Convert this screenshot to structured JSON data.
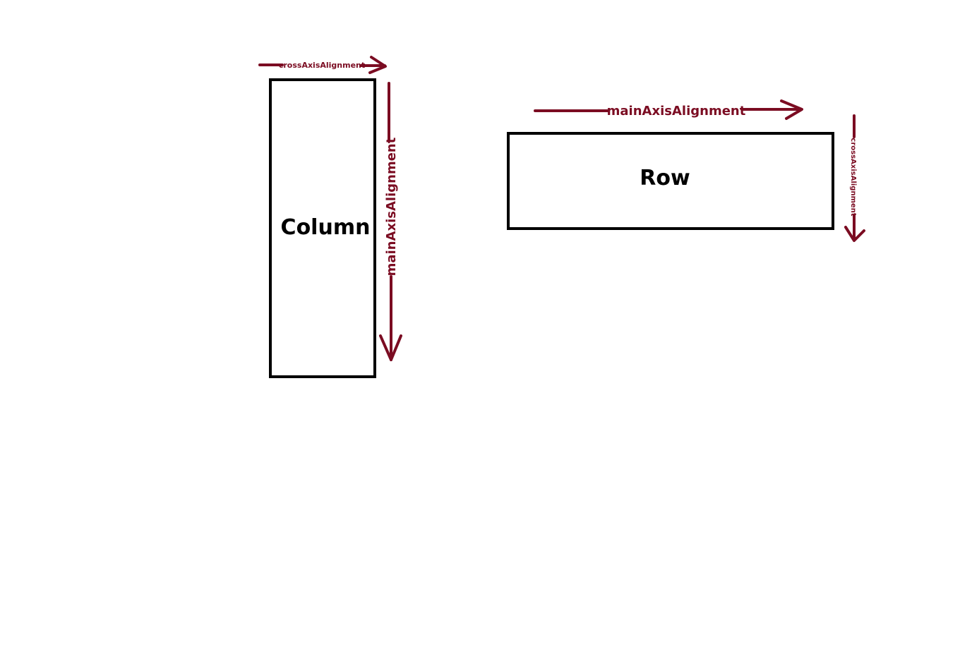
{
  "column": {
    "label": "Column",
    "main_axis_label": "mainAxisAlignment",
    "cross_axis_label": "crossAxisAlignment"
  },
  "row": {
    "label": "Row",
    "main_axis_label": "mainAxisAlignment",
    "cross_axis_label": "crossAxisAlignment"
  },
  "colors": {
    "arrow": "#7b0c22",
    "box_border": "#000000"
  }
}
